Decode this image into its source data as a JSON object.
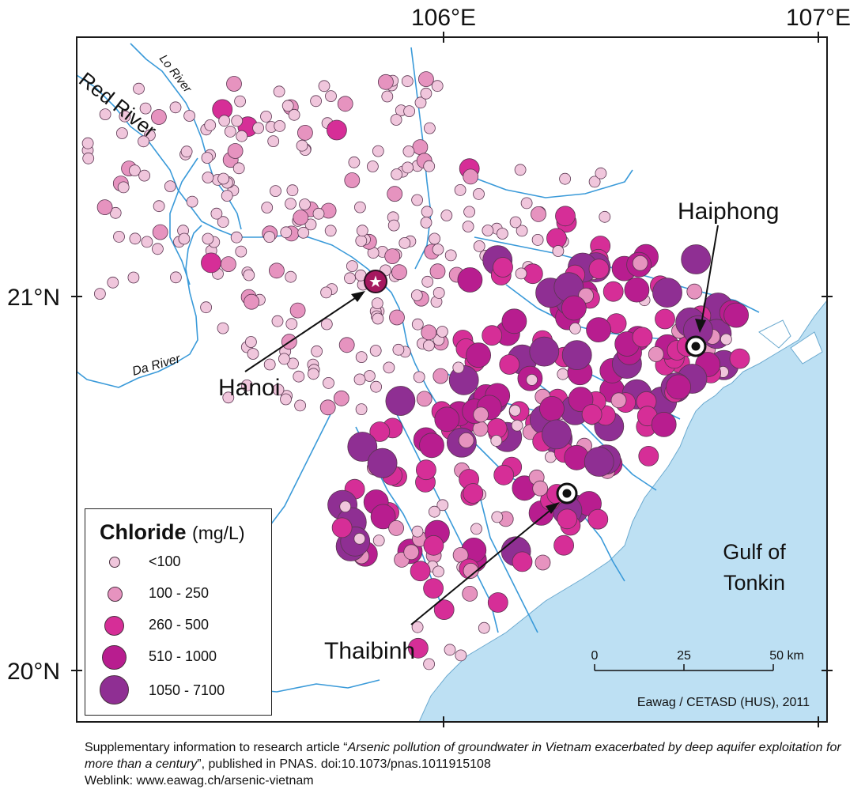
{
  "axes": {
    "lon_labels": [
      "106°E",
      "107°E"
    ],
    "lat_labels": [
      "21°N",
      "20°N"
    ]
  },
  "rivers": {
    "red_river": "Red River",
    "lo_river": "Lo River",
    "da_river": "Da River"
  },
  "places": {
    "hanoi": "Hanoi",
    "haiphong": "Haiphong",
    "thaibinh": "Thaibinh",
    "gulf_line1": "Gulf of",
    "gulf_line2": "Tonkin"
  },
  "scale_bar": {
    "tick0": "0",
    "tick1": "25",
    "tick2": "50 km"
  },
  "credit": "Eawag / CETASD (HUS), 2011",
  "legend": {
    "title_bold": "Chloride",
    "title_unit": "(mg/L)",
    "classes": [
      {
        "label": "<100",
        "color": "#f0c6dc"
      },
      {
        "label": "100 - 250",
        "color": "#e693bf"
      },
      {
        "label": "260 - 500",
        "color": "#d62e97"
      },
      {
        "label": "510 - 1000",
        "color": "#b81d8f"
      },
      {
        "label": "1050 - 7100",
        "color": "#8f2f93"
      }
    ]
  },
  "caption": {
    "prefix": "Supplementary information to research article “",
    "title_italic": "Arsenic pollution of groundwater in Vietnam exacerbated by deep aquifer exploitation for more than a century",
    "suffix": "”, published in PNAS. doi:10.1073/pnas.1011915108",
    "weblink": "Weblink: www.eawag.ch/arsenic-vietnam"
  },
  "colors": {
    "sea": "#bde0f3",
    "river": "#3a9ad9",
    "frame": "#1a1a1a"
  }
}
